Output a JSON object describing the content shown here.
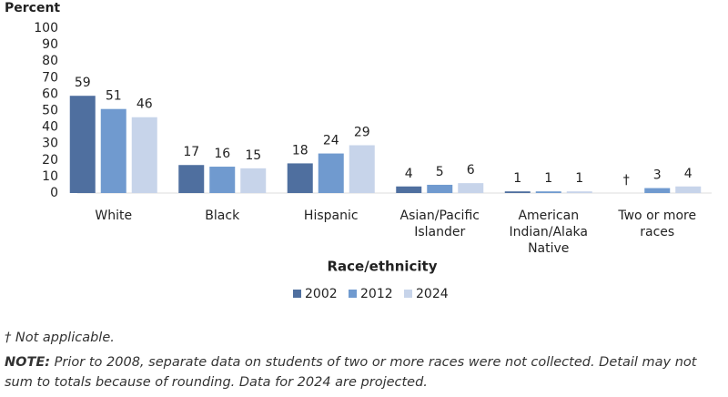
{
  "chart_data": {
    "type": "bar",
    "y_label": "Percent",
    "x_label": "Race/ethnicity",
    "categories": [
      "White",
      "Black",
      "Hispanic",
      "Asian/Pacific\nIslander",
      "American\nIndian/Alaka\nNative",
      "Two or more\nraces"
    ],
    "series": [
      {
        "name": "2002",
        "color": "#4f6f9f",
        "values": [
          59,
          17,
          18,
          4,
          1,
          null
        ],
        "value_labels": [
          "59",
          "17",
          "18",
          "4",
          "1",
          "†"
        ]
      },
      {
        "name": "2012",
        "color": "#709acf",
        "values": [
          51,
          16,
          24,
          5,
          1,
          3
        ]
      },
      {
        "name": "2024",
        "color": "#c7d4ea",
        "values": [
          46,
          15,
          29,
          6,
          1,
          4
        ]
      }
    ],
    "ylim": [
      0,
      100
    ],
    "yticks": [
      0,
      10,
      20,
      30,
      40,
      50,
      60,
      70,
      80,
      90,
      100
    ],
    "grid": false,
    "footnote": "† Not applicable.",
    "note_label": "NOTE:",
    "note": "Prior to 2008, separate data on students of two or more races were not collected. Detail may not sum to totals because of rounding. Data for 2024 are projected."
  }
}
